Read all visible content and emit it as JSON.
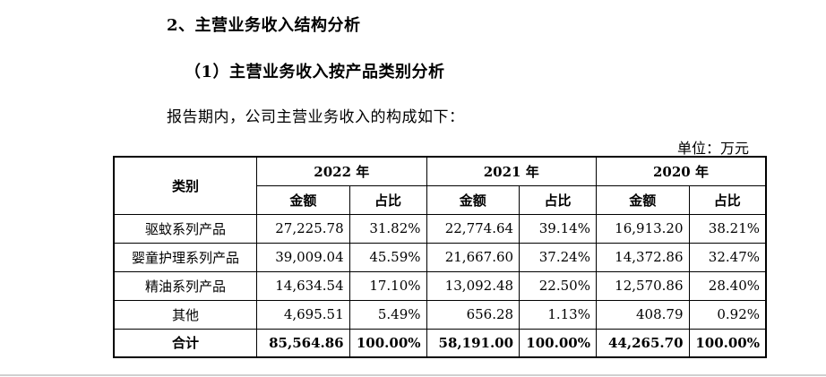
{
  "heading_section": "2、主营业务收入结构分析",
  "heading_sub": "（1）主营业务收入按产品类别分析",
  "intro_text": "报告期内，公司主营业务收入的构成如下：",
  "unit_label": "单位：万元",
  "table": {
    "category_header": "类别",
    "years": [
      "2022 年",
      "2021 年",
      "2020 年"
    ],
    "sub_headers": {
      "amount": "金额",
      "ratio": "占比"
    },
    "rows": [
      {
        "category": "驱蚊系列产品",
        "y2022_amount": "27,225.78",
        "y2022_ratio": "31.82%",
        "y2021_amount": "22,774.64",
        "y2021_ratio": "39.14%",
        "y2020_amount": "16,913.20",
        "y2020_ratio": "38.21%"
      },
      {
        "category": "婴童护理系列产品",
        "y2022_amount": "39,009.04",
        "y2022_ratio": "45.59%",
        "y2021_amount": "21,667.60",
        "y2021_ratio": "37.24%",
        "y2020_amount": "14,372.86",
        "y2020_ratio": "32.47%"
      },
      {
        "category": "精油系列产品",
        "y2022_amount": "14,634.54",
        "y2022_ratio": "17.10%",
        "y2021_amount": "13,092.48",
        "y2021_ratio": "22.50%",
        "y2020_amount": "12,570.86",
        "y2020_ratio": "28.40%"
      },
      {
        "category": "其他",
        "y2022_amount": "4,695.51",
        "y2022_ratio": "5.49%",
        "y2021_amount": "656.28",
        "y2021_ratio": "1.13%",
        "y2020_amount": "408.79",
        "y2020_ratio": "0.92%"
      }
    ],
    "total": {
      "category": "合计",
      "y2022_amount": "85,564.86",
      "y2022_ratio": "100.00%",
      "y2021_amount": "58,191.00",
      "y2021_ratio": "100.00%",
      "y2020_amount": "44,265.70",
      "y2020_ratio": "100.00%"
    }
  }
}
